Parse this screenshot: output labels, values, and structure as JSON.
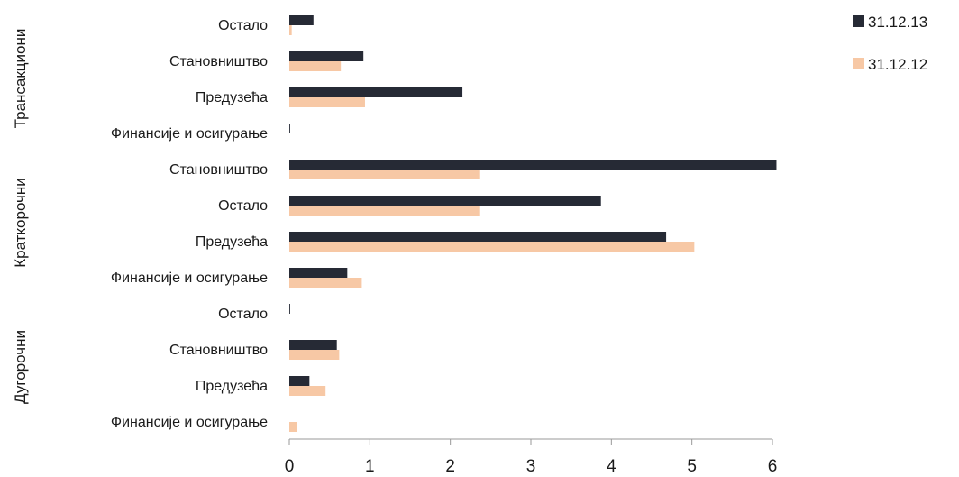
{
  "chart_data": {
    "type": "bar",
    "orientation": "horizontal",
    "title": "",
    "xlabel": "",
    "ylabel": "",
    "xlim": [
      0,
      6
    ],
    "xticks": [
      "0",
      "1",
      "2",
      "3",
      "4",
      "5",
      "6"
    ],
    "grid": false,
    "legend_position": "top-right",
    "groups": [
      {
        "label": "Трансакциони",
        "categories": [
          "Остало",
          "Становништво",
          "Предузећа",
          "Финансије и осигурање"
        ]
      },
      {
        "label": "Краткорочни",
        "categories": [
          "Становништво",
          "Остало",
          "Предузећа",
          "Финансије и осигурање"
        ]
      },
      {
        "label": "Дугорочни",
        "categories": [
          "Остало",
          "Становништво",
          "Предузећа",
          "Финансије и осигурање"
        ]
      }
    ],
    "series": [
      {
        "name": "31.12.13",
        "color": "#262a35",
        "values": [
          0.3,
          0.92,
          2.15,
          0.01,
          6.05,
          3.87,
          4.68,
          0.72,
          0.01,
          0.59,
          0.25,
          0.0
        ]
      },
      {
        "name": "31.12.12",
        "color": "#f7c8a5",
        "values": [
          0.03,
          0.64,
          0.94,
          0.0,
          2.37,
          2.37,
          5.03,
          0.9,
          0.0,
          0.62,
          0.45,
          0.1
        ]
      }
    ]
  }
}
